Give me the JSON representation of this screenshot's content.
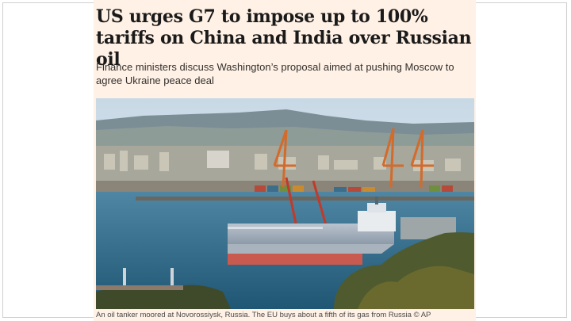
{
  "article": {
    "headline": "US urges G7 to impose up to 100% tariffs on China and India over Russian oil",
    "standfirst": "Finance ministers discuss Washington’s proposal aimed at pushing Moscow to agree Ukraine peace deal",
    "image": {
      "caption": "An oil tanker moored at Novorossiysk, Russia. The EU buys about a fifth of its gas from Russia © AP"
    }
  },
  "colors": {
    "page_background": "#fff1e5",
    "headline": "#1a1a1a",
    "standfirst": "#33302e",
    "caption": "#4a4a4a"
  }
}
